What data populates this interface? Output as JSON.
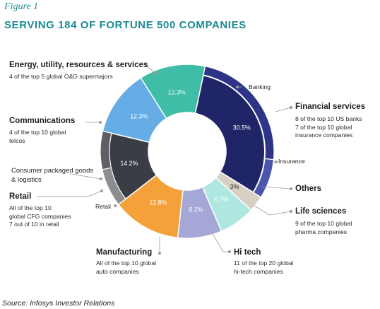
{
  "figure_label": "Figure 1",
  "title": "SERVING 184 OF FORTUNE 500 COMPANIES",
  "source": "Source: Infosys Investor Relations",
  "categories": {
    "financial": {
      "title": "Financial services",
      "desc": [
        "8 of the top 10 US banks",
        "7 of the top 10 global",
        "insurance companies"
      ],
      "sub_banking": "Banking",
      "sub_insurance": "Insurance"
    },
    "others": {
      "title": "Others"
    },
    "life": {
      "title": "Life sciences",
      "desc": [
        "9 of the top 10 global",
        "pharma companies"
      ]
    },
    "hitech": {
      "title": "Hi tech",
      "desc": [
        "11 of the top 20 global",
        "hi-tech companies"
      ]
    },
    "manufacturing": {
      "title": "Manufacturing",
      "desc": [
        "All of the top 10 global",
        "auto companies"
      ]
    },
    "cpg": {
      "title": [
        "Consumer packaged goods",
        "& logistics"
      ]
    },
    "retail": {
      "title": "Retail",
      "desc": [
        "All of the top 10",
        "global CFG companies",
        "7 out of 10 in retail"
      ],
      "sub_retail": "Retail"
    },
    "communications": {
      "title": "Communications",
      "desc": [
        "4 of the top 10 global",
        "telcos"
      ]
    },
    "energy": {
      "title": "Energy, utility, resources & services",
      "desc": [
        "4 of the top 5 global O&G supermajors"
      ]
    }
  },
  "chart_data": {
    "type": "pie",
    "donut": true,
    "title": "SERVING 184 OF FORTUNE 500 COMPANIES",
    "slices": [
      {
        "label": "Financial services",
        "value": 30.5,
        "value_label": "30.5%",
        "color": "#1f2566"
      },
      {
        "label": "Others",
        "value": 3.0,
        "value_label": "3%",
        "color": "#d9d0c4"
      },
      {
        "label": "Life sciences",
        "value": 6.7,
        "value_label": "6.7%",
        "color": "#aee6e0"
      },
      {
        "label": "Hi tech",
        "value": 8.2,
        "value_label": "8.2%",
        "color": "#a5a7d6"
      },
      {
        "label": "Manufacturing",
        "value": 12.8,
        "value_label": "12.8%",
        "color": "#f4a13a"
      },
      {
        "label": "Retail / Consumer packaged goods & logistics",
        "value": 14.2,
        "value_label": "14.2%",
        "color": "#3a3d44"
      },
      {
        "label": "Communications",
        "value": 12.3,
        "value_label": "12.3%",
        "color": "#66ade6"
      },
      {
        "label": "Energy, utility, resources & services",
        "value": 12.3,
        "value_label": "12.3%",
        "color": "#3fbda6"
      }
    ],
    "outer_ring": {
      "financial_services": [
        {
          "label": "Banking",
          "share": 0.76,
          "color": "#2e3588"
        },
        {
          "label": "Insurance",
          "share": 0.24,
          "color": "#4b57ad"
        }
      ],
      "retail_cpg": [
        {
          "label": "Retail",
          "share": 0.5,
          "color": "#8c8d90"
        },
        {
          "label": "Consumer packaged goods & logistics",
          "share": 0.5,
          "color": "#5e6066"
        }
      ]
    }
  }
}
